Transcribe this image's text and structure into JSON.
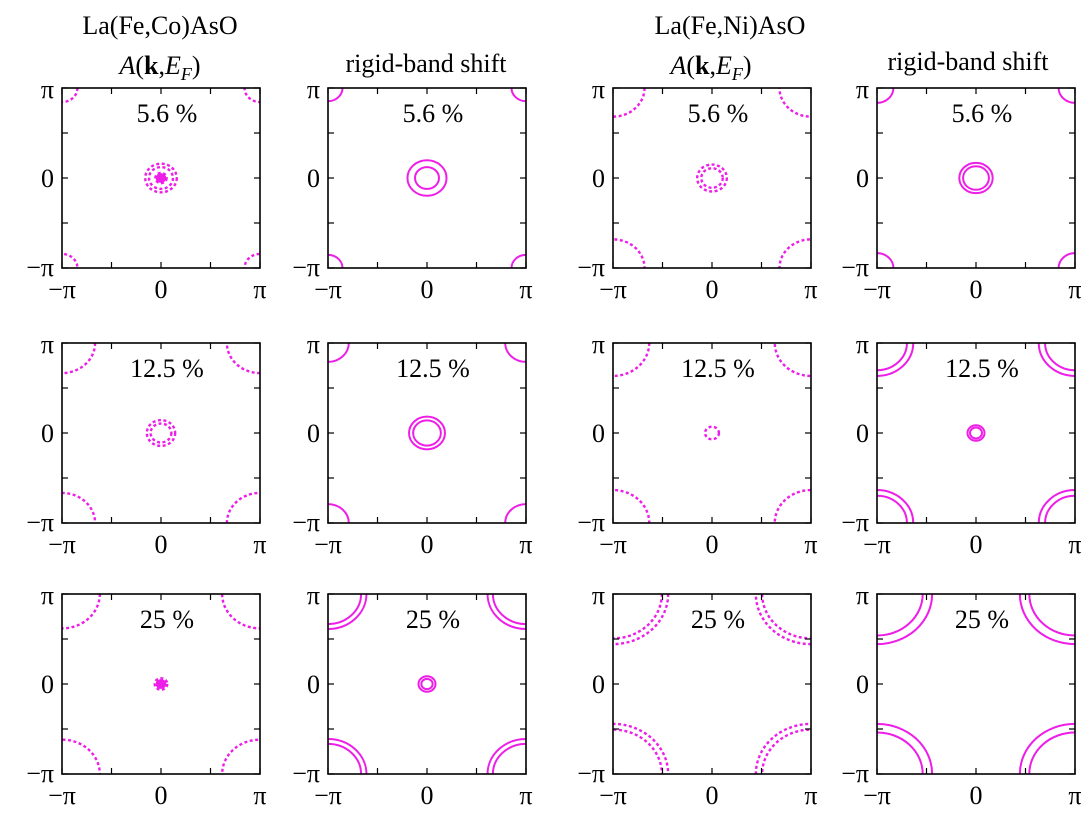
{
  "colors": {
    "contour": "#ee1ee8",
    "axes": "#000000"
  },
  "headers": {
    "group_left": "La(Fe,Co)AsO",
    "group_right": "La(Fe,Ni)AsO",
    "akef": {
      "A": "A",
      "k": "k",
      "E": "E",
      "F": "F"
    },
    "rigid": "rigid-band shift"
  },
  "ticks": {
    "x": [
      "−π",
      "0",
      "π"
    ],
    "y": [
      "π",
      "0",
      "−π"
    ]
  },
  "chart_data": {
    "type": "contour",
    "axis_range": [
      "-pi",
      "pi"
    ],
    "xlabel": "",
    "ylabel": "",
    "panels": [
      {
        "group": "La(Fe,Co)AsO",
        "method": "A(k,E_F)",
        "doping": "5.6 %",
        "style": "spectral",
        "gamma_radii": [
          0.5,
          0.38,
          0.18
        ],
        "corner_radii": [
          0.49
        ]
      },
      {
        "group": "La(Fe,Co)AsO",
        "method": "rigid-band shift",
        "doping": "5.6 %",
        "style": "line",
        "gamma_radii": [
          0.62,
          0.38
        ],
        "corner_radii": [
          0.46
        ]
      },
      {
        "group": "La(Fe,Ni)AsO",
        "method": "A(k,E_F)",
        "doping": "5.6 %",
        "style": "spectral",
        "gamma_radii": [
          0.47,
          0.34
        ],
        "corner_radii": [
          1.0
        ]
      },
      {
        "group": "La(Fe,Ni)AsO",
        "method": "rigid-band shift",
        "doping": "5.6 %",
        "style": "line",
        "gamma_radii": [
          0.53,
          0.41
        ],
        "corner_radii": [
          0.52
        ]
      },
      {
        "group": "La(Fe,Co)AsO",
        "method": "A(k,E_F)",
        "doping": "12.5 %",
        "style": "spectral",
        "gamma_radii": [
          0.45,
          0.33
        ],
        "corner_radii": [
          1.05
        ]
      },
      {
        "group": "La(Fe,Co)AsO",
        "method": "rigid-band shift",
        "doping": "12.5 %",
        "style": "line",
        "gamma_radii": [
          0.57,
          0.44
        ],
        "corner_radii": [
          0.66
        ]
      },
      {
        "group": "La(Fe,Ni)AsO",
        "method": "A(k,E_F)",
        "doping": "12.5 %",
        "style": "spectral",
        "gamma_radii": [
          0.22
        ],
        "corner_radii": [
          1.15
        ]
      },
      {
        "group": "La(Fe,Ni)AsO",
        "method": "rigid-band shift",
        "doping": "12.5 %",
        "style": "line",
        "gamma_radii": [
          0.27,
          0.19
        ],
        "corner_radii": [
          1.15,
          0.95
        ]
      },
      {
        "group": "La(Fe,Co)AsO",
        "method": "A(k,E_F)",
        "doping": "25 %",
        "style": "spectral",
        "gamma_radii": [
          0.2,
          0.12
        ],
        "corner_radii": [
          1.2
        ]
      },
      {
        "group": "La(Fe,Co)AsO",
        "method": "rigid-band shift",
        "doping": "25 %",
        "style": "line",
        "gamma_radii": [
          0.27,
          0.18
        ],
        "corner_radii": [
          1.22,
          1.05
        ]
      },
      {
        "group": "La(Fe,Ni)AsO",
        "method": "A(k,E_F)",
        "doping": "25 %",
        "style": "spectral",
        "gamma_radii": [],
        "corner_radii": [
          1.75,
          1.55
        ]
      },
      {
        "group": "La(Fe,Ni)AsO",
        "method": "rigid-band shift",
        "doping": "25 %",
        "style": "line",
        "gamma_radii": [],
        "corner_radii": [
          1.75,
          1.45
        ]
      }
    ]
  }
}
